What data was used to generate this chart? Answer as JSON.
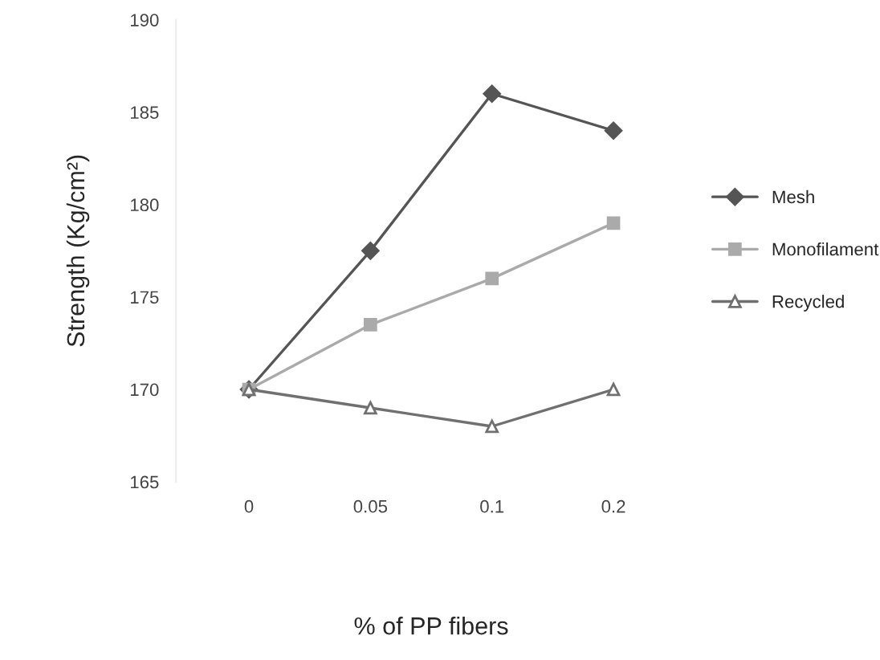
{
  "chart_data": {
    "type": "line",
    "xlabel": "% of PP fibers",
    "ylabel": "Strength (Kg/cm²)",
    "categories": [
      "0",
      "0.05",
      "0.1",
      "0.2"
    ],
    "series": [
      {
        "name": "Mesh",
        "color": "#555555",
        "marker": "diamond",
        "values": [
          170,
          177.5,
          186,
          184
        ]
      },
      {
        "name": "Monofilament",
        "color": "#aaaaaa",
        "marker": "square",
        "values": [
          170,
          173.5,
          176,
          179
        ]
      },
      {
        "name": "Recycled",
        "color": "#707070",
        "marker": "triangle",
        "values": [
          170,
          169,
          168,
          170
        ]
      }
    ],
    "ylim": [
      165,
      190
    ],
    "yticks": [
      165,
      170,
      175,
      180,
      185,
      190
    ],
    "grid": false,
    "legend": "right",
    "line_style": "solid"
  }
}
